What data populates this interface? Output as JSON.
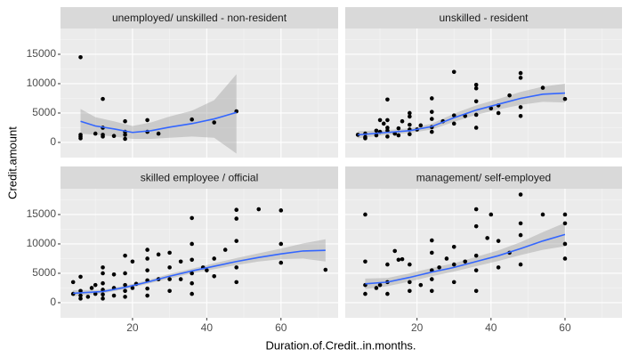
{
  "chart_data": {
    "type": "scatter",
    "x_label": "Duration.of.Credit..in.months.",
    "y_label": "Credit.amount",
    "xlim": [
      0.6,
      75.4
    ],
    "ylim": [
      -2580,
      19390
    ],
    "xticks": [
      20,
      40,
      60
    ],
    "yticks": [
      0,
      5000,
      10000,
      15000
    ],
    "x_minor_ticks": [
      10,
      30,
      50,
      70
    ],
    "y_minor_ticks": [
      2500,
      7500,
      12500,
      17500
    ],
    "grid": true,
    "point_color": "#000000",
    "smooth_color": "#3366ff",
    "ribbon_color": "#999999",
    "panels": [
      {
        "title": "unemployed/ unskilled - non-resident",
        "x": [
          6,
          6,
          6,
          6,
          12,
          12,
          12,
          10,
          18,
          18,
          18,
          15,
          24,
          24,
          27,
          36,
          42,
          48,
          18,
          12
        ],
        "values": [
          14500,
          1000,
          1300,
          700,
          7400,
          1300,
          1000,
          1500,
          3600,
          1800,
          1300,
          1100,
          1800,
          3800,
          1500,
          3900,
          3400,
          5300,
          600,
          2500
        ],
        "smooth": {
          "x": [
            6,
            10,
            15,
            20,
            25,
            30,
            36,
            42,
            48
          ],
          "y": [
            3600,
            2800,
            2300,
            1700,
            2000,
            2600,
            3200,
            4000,
            5100
          ],
          "ymin": [
            1500,
            1300,
            1000,
            600,
            600,
            800,
            1000,
            800,
            -1900
          ],
          "ymax": [
            5700,
            4300,
            3600,
            2800,
            3400,
            4400,
            5400,
            7200,
            11600
          ]
        }
      },
      {
        "title": "unskilled - resident",
        "x": [
          4,
          6,
          6,
          6,
          9,
          9,
          10,
          10,
          11,
          12,
          12,
          12,
          12,
          12,
          14,
          15,
          15,
          16,
          18,
          18,
          18,
          18,
          18,
          20,
          21,
          24,
          24,
          24,
          24,
          24,
          27,
          30,
          30,
          30,
          33,
          36,
          36,
          36,
          36,
          36,
          42,
          42,
          45,
          48,
          48,
          48,
          48,
          54,
          60,
          40
        ],
        "values": [
          1300,
          1500,
          700,
          900,
          1200,
          2000,
          1800,
          3800,
          3200,
          1000,
          2000,
          2500,
          3800,
          7300,
          1500,
          1200,
          2400,
          3600,
          1400,
          2200,
          3000,
          4400,
          5000,
          2200,
          2900,
          1800,
          2600,
          4000,
          5200,
          7500,
          3600,
          3200,
          4600,
          12000,
          4500,
          2500,
          4700,
          7000,
          9200,
          9800,
          5000,
          6300,
          8000,
          4500,
          6000,
          11000,
          11800,
          9300,
          7400,
          5800
        ],
        "smooth": {
          "x": [
            4,
            12,
            18,
            24,
            30,
            36,
            42,
            48,
            54,
            60
          ],
          "y": [
            1300,
            1700,
            2000,
            2700,
            4200,
            5500,
            6500,
            7500,
            8200,
            8400
          ],
          "ymin": [
            700,
            1300,
            1600,
            2200,
            3500,
            4700,
            5600,
            6400,
            6900,
            6800
          ],
          "ymax": [
            1900,
            2100,
            2400,
            3200,
            4900,
            6300,
            7400,
            8600,
            9500,
            10000
          ]
        }
      },
      {
        "title": "skilled employee / official",
        "x": [
          4,
          4,
          6,
          6,
          6,
          6,
          8,
          9,
          10,
          10,
          12,
          12,
          12,
          12,
          12,
          12,
          15,
          15,
          15,
          18,
          18,
          18,
          18,
          18,
          20,
          20,
          21,
          24,
          24,
          24,
          24,
          24,
          24,
          27,
          27,
          30,
          30,
          30,
          30,
          33,
          33,
          36,
          36,
          36,
          36,
          36,
          36,
          39,
          42,
          42,
          45,
          48,
          48,
          48,
          48,
          48,
          54,
          60,
          60,
          60,
          72,
          40
        ],
        "values": [
          1500,
          3500,
          700,
          1200,
          2000,
          4400,
          1000,
          2500,
          1500,
          3000,
          700,
          1400,
          2200,
          3300,
          5000,
          6000,
          1200,
          2500,
          4800,
          1000,
          2000,
          3000,
          5000,
          8000,
          2500,
          7000,
          3200,
          1200,
          2400,
          3800,
          5500,
          7500,
          9000,
          4000,
          8200,
          2000,
          4000,
          6000,
          8500,
          4000,
          7000,
          1500,
          3300,
          5000,
          7300,
          10000,
          14400,
          6000,
          4500,
          7500,
          9000,
          3500,
          6000,
          10500,
          14300,
          15800,
          15900,
          6800,
          10000,
          15700,
          5600,
          5500
        ],
        "smooth": {
          "x": [
            4,
            12,
            18,
            24,
            30,
            36,
            42,
            48,
            54,
            60,
            66,
            72
          ],
          "y": [
            1600,
            1900,
            2600,
            3500,
            4500,
            5400,
            6200,
            7000,
            7700,
            8300,
            8800,
            8900
          ],
          "ymin": [
            1100,
            1600,
            2300,
            3200,
            4100,
            5000,
            5700,
            6400,
            7000,
            7400,
            7500,
            7000
          ],
          "ymax": [
            2100,
            2200,
            2900,
            3800,
            4900,
            5800,
            6700,
            7600,
            8400,
            9200,
            10100,
            10800
          ]
        }
      },
      {
        "title": "management/ self-employed",
        "x": [
          6,
          6,
          6,
          6,
          9,
          10,
          12,
          12,
          12,
          14,
          15,
          16,
          18,
          18,
          18,
          21,
          24,
          24,
          24,
          24,
          24,
          26,
          28,
          30,
          30,
          30,
          33,
          36,
          36,
          36,
          36,
          36,
          39,
          42,
          42,
          45,
          48,
          48,
          48,
          48,
          54,
          60,
          60,
          60,
          60,
          40
        ],
        "values": [
          3000,
          1500,
          15000,
          7000,
          2500,
          3000,
          1500,
          3500,
          6500,
          8800,
          7300,
          7400,
          2000,
          3500,
          6500,
          3000,
          2000,
          4000,
          5500,
          8500,
          10600,
          6000,
          7500,
          3500,
          6500,
          9500,
          7000,
          2000,
          5500,
          8000,
          13000,
          15900,
          11000,
          6000,
          10500,
          8500,
          6500,
          11500,
          13500,
          18400,
          15000,
          7500,
          10000,
          13500,
          15000,
          15000
        ],
        "smooth": {
          "x": [
            6,
            12,
            18,
            24,
            30,
            36,
            42,
            48,
            54,
            60
          ],
          "y": [
            3200,
            3500,
            4300,
            5200,
            6000,
            7000,
            8000,
            9200,
            10500,
            11600
          ],
          "ymin": [
            2300,
            2800,
            3600,
            4500,
            5300,
            6200,
            7100,
            8100,
            9000,
            9600
          ],
          "ymax": [
            4100,
            4200,
            5000,
            5900,
            6700,
            7800,
            8900,
            10300,
            12000,
            13600
          ]
        }
      }
    ]
  }
}
